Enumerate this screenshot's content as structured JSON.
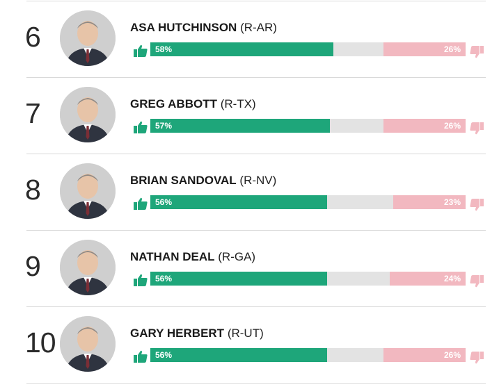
{
  "colors": {
    "approve": "#1ea67a",
    "disapprove": "#f2b8c0",
    "neutral": "#e3e3e3"
  },
  "icons": {
    "approve": "thumbs-up-icon",
    "disapprove": "thumbs-down-icon"
  },
  "chart_data": {
    "type": "bar",
    "categories": [
      "ASA HUTCHINSON (R-AR)",
      "GREG ABBOTT (R-TX)",
      "BRIAN SANDOVAL (R-NV)",
      "NATHAN DEAL (R-GA)",
      "GARY HERBERT (R-UT)"
    ],
    "series": [
      {
        "values": [
          58,
          57,
          56,
          56,
          56
        ]
      },
      {
        "values": [
          26,
          26,
          23,
          24,
          26
        ]
      }
    ],
    "ylim": [
      0,
      100
    ]
  },
  "rows": [
    {
      "rank": "6",
      "name": "ASA HUTCHINSON",
      "party": "(R-AR)",
      "approve": 58,
      "disapprove": 26,
      "approve_label": "58%",
      "disapprove_label": "26%"
    },
    {
      "rank": "7",
      "name": "GREG ABBOTT",
      "party": "(R-TX)",
      "approve": 57,
      "disapprove": 26,
      "approve_label": "57%",
      "disapprove_label": "26%"
    },
    {
      "rank": "8",
      "name": "BRIAN SANDOVAL",
      "party": "(R-NV)",
      "approve": 56,
      "disapprove": 23,
      "approve_label": "56%",
      "disapprove_label": "23%"
    },
    {
      "rank": "9",
      "name": "NATHAN DEAL",
      "party": "(R-GA)",
      "approve": 56,
      "disapprove": 24,
      "approve_label": "56%",
      "disapprove_label": "24%"
    },
    {
      "rank": "10",
      "name": "GARY HERBERT",
      "party": "(R-UT)",
      "approve": 56,
      "disapprove": 26,
      "approve_label": "56%",
      "disapprove_label": "26%"
    }
  ]
}
